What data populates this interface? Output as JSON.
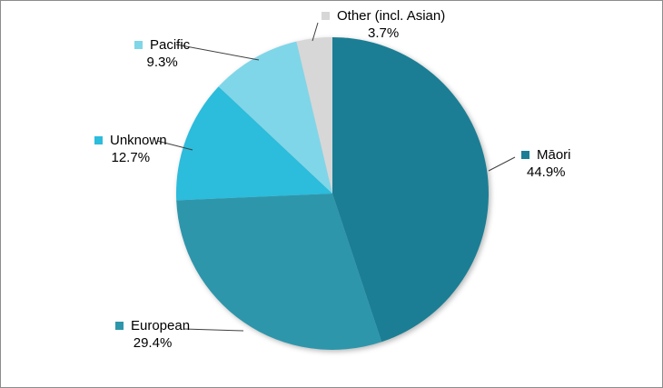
{
  "figure": {
    "background": "#FFFFFF",
    "border_color": "#8C8C8C",
    "leader_line_color": "#404040",
    "text_color": "#000000"
  },
  "chart_data": {
    "type": "pie",
    "direction": "clockwise",
    "start_angle_deg": 0,
    "unit": "%",
    "legend_position": "data-labels-with-legend-keys",
    "categories": [
      "Māori",
      "European",
      "Unknown",
      "Pacific",
      "Other (incl. Asian)"
    ],
    "values": [
      44.9,
      29.4,
      12.7,
      9.3,
      3.7
    ],
    "slices": [
      {
        "name": "Māori",
        "value": 44.9,
        "label": "44.9%",
        "color": "#1B7E94"
      },
      {
        "name": "European",
        "value": 29.4,
        "label": "29.4%",
        "color": "#2E96AB"
      },
      {
        "name": "Unknown",
        "value": 12.7,
        "label": "12.7%",
        "color": "#2CBCDC"
      },
      {
        "name": "Pacific",
        "value": 9.3,
        "label": "9.3%",
        "color": "#7FD6E8"
      },
      {
        "name": "Other (incl. Asian)",
        "value": 3.7,
        "label": "3.7%",
        "color": "#D7D7D7"
      }
    ]
  }
}
